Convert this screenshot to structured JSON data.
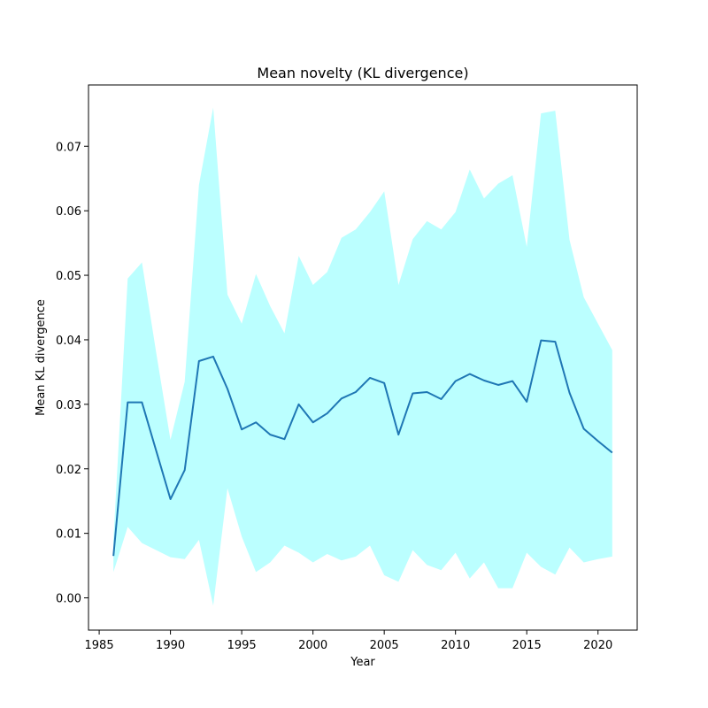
{
  "chart_data": {
    "type": "line",
    "title": "Mean novelty (KL divergence)",
    "xlabel": "Year",
    "ylabel": "Mean KL divergence",
    "xlim": [
      1984.25,
      2022.75
    ],
    "ylim": [
      -0.005,
      0.0795
    ],
    "xticks": [
      1985,
      1990,
      1995,
      2000,
      2005,
      2010,
      2015,
      2020
    ],
    "yticks": [
      0.0,
      0.01,
      0.02,
      0.03,
      0.04,
      0.05,
      0.06,
      0.07
    ],
    "ytick_labels": [
      "0.00",
      "0.01",
      "0.02",
      "0.03",
      "0.04",
      "0.05",
      "0.06",
      "0.07"
    ],
    "grid": false,
    "legend": "none",
    "colors": {
      "line": "#1f77b4",
      "band": "#bbffff"
    },
    "x": [
      1986,
      1987,
      1988,
      1989,
      1990,
      1991,
      1992,
      1993,
      1994,
      1995,
      1996,
      1997,
      1998,
      1999,
      2000,
      2001,
      2002,
      2003,
      2004,
      2005,
      2006,
      2007,
      2008,
      2009,
      2010,
      2011,
      2012,
      2013,
      2014,
      2015,
      2016,
      2017,
      2018,
      2019,
      2020,
      2021
    ],
    "series": [
      {
        "values": [
          0.0065,
          0.0303,
          0.0303,
          0.0228,
          0.0153,
          0.0198,
          0.0367,
          0.0374,
          0.0324,
          0.0261,
          0.0272,
          0.0253,
          0.0246,
          0.03,
          0.0272,
          0.0286,
          0.0309,
          0.0319,
          0.0341,
          0.0333,
          0.0253,
          0.0317,
          0.0319,
          0.0308,
          0.0336,
          0.0347,
          0.0337,
          0.033,
          0.0336,
          0.0304,
          0.0399,
          0.0397,
          0.0318,
          0.0262,
          0.0243,
          0.0225
        ]
      }
    ],
    "band": {
      "lower": [
        0.004,
        0.011,
        0.0085,
        0.0074,
        0.0063,
        0.006,
        0.009,
        -0.0012,
        0.017,
        0.0095,
        0.004,
        0.0055,
        0.0081,
        0.007,
        0.0055,
        0.0068,
        0.0058,
        0.0064,
        0.0081,
        0.0035,
        0.0025,
        0.0074,
        0.0051,
        0.0043,
        0.007,
        0.003,
        0.0055,
        0.0015,
        0.0015,
        0.007,
        0.0048,
        0.0036,
        0.0078,
        0.0055,
        0.006,
        0.0064
      ],
      "upper": [
        0.009,
        0.0495,
        0.052,
        0.038,
        0.0245,
        0.0335,
        0.064,
        0.076,
        0.047,
        0.0425,
        0.0502,
        0.0452,
        0.041,
        0.053,
        0.0485,
        0.0505,
        0.0558,
        0.0571,
        0.0598,
        0.063,
        0.0485,
        0.0556,
        0.0584,
        0.0571,
        0.0598,
        0.0664,
        0.0619,
        0.0642,
        0.0655,
        0.0544,
        0.0751,
        0.0755,
        0.0555,
        0.0466,
        0.0425,
        0.0384
      ]
    }
  }
}
